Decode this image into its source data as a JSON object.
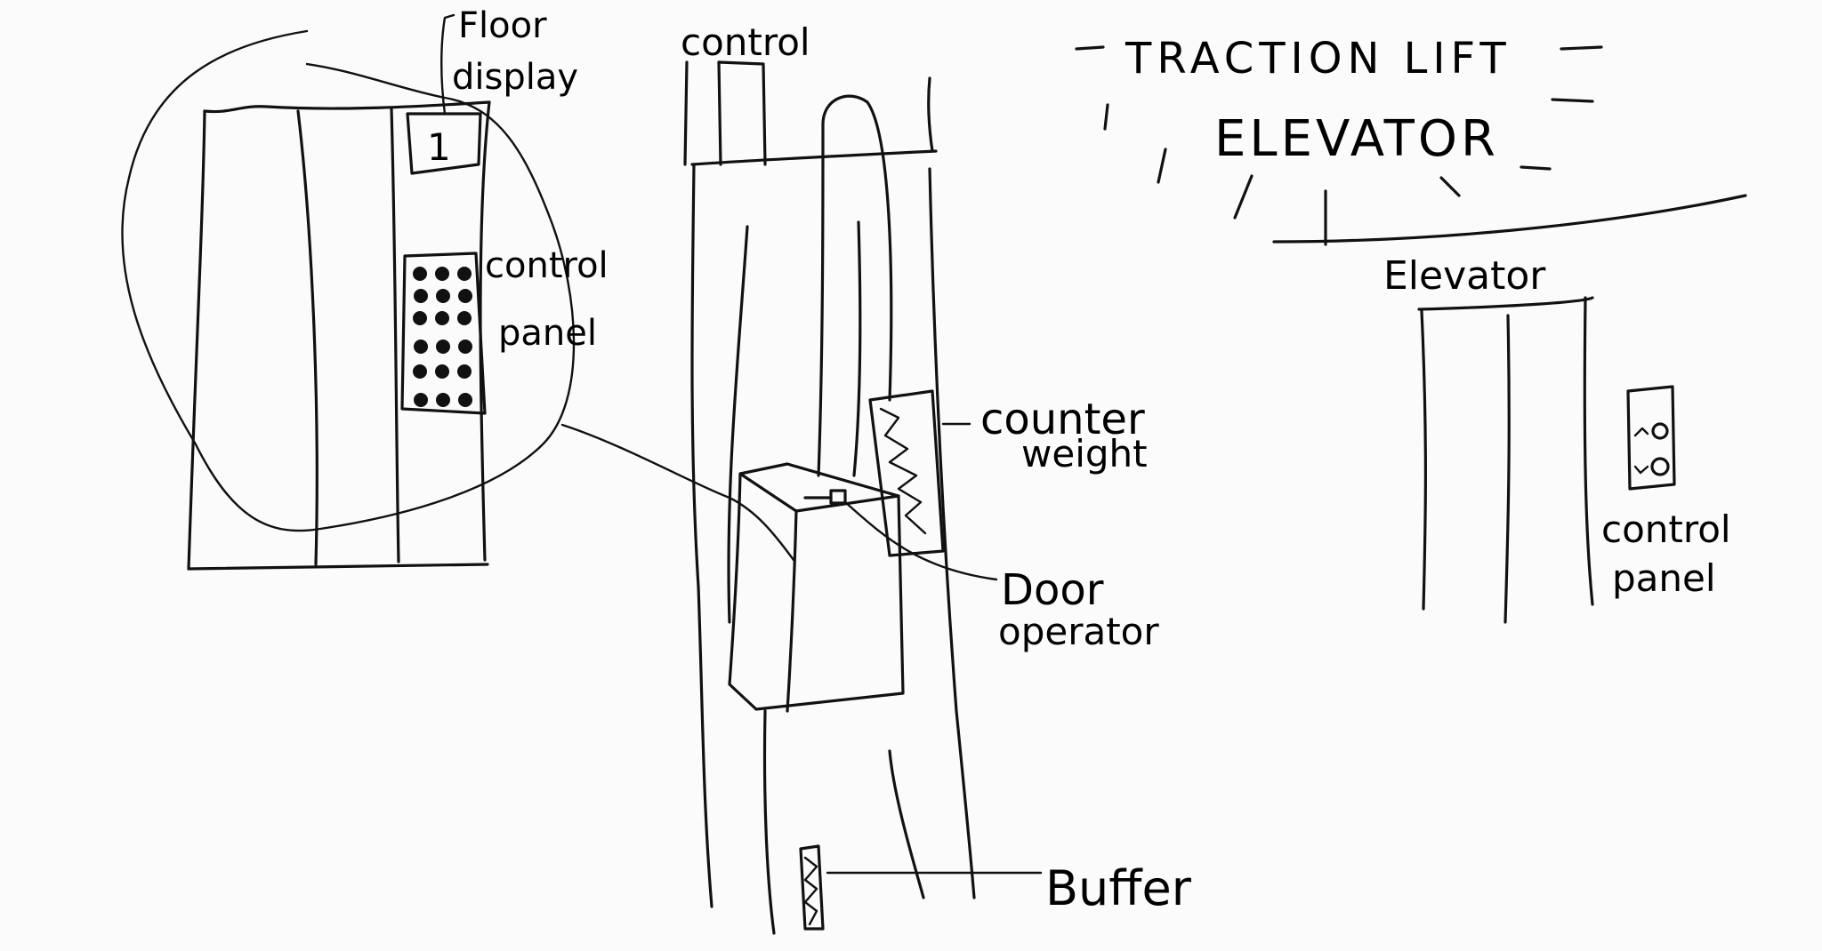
{
  "title": {
    "line1": "TRACTION LIFT",
    "line2": "ELEVATOR"
  },
  "left_view": {
    "floor_display_label_1": "Floor",
    "floor_display_label_2": "display",
    "floor_display_value": "1",
    "control_panel_label_1": "control",
    "control_panel_label_2": "panel"
  },
  "shaft_view": {
    "control_label": "control",
    "counterweight_label_1": "counter",
    "counterweight_label_2": "weight",
    "door_operator_label_1": "Door",
    "door_operator_label_2": "operator",
    "buffer_label": "Buffer"
  },
  "right_view": {
    "elevator_label": "Elevator",
    "control_panel_label_1": "control",
    "control_panel_label_2": "panel"
  },
  "colors": {
    "ink": "#111111",
    "paper": "#fbfbfb"
  }
}
